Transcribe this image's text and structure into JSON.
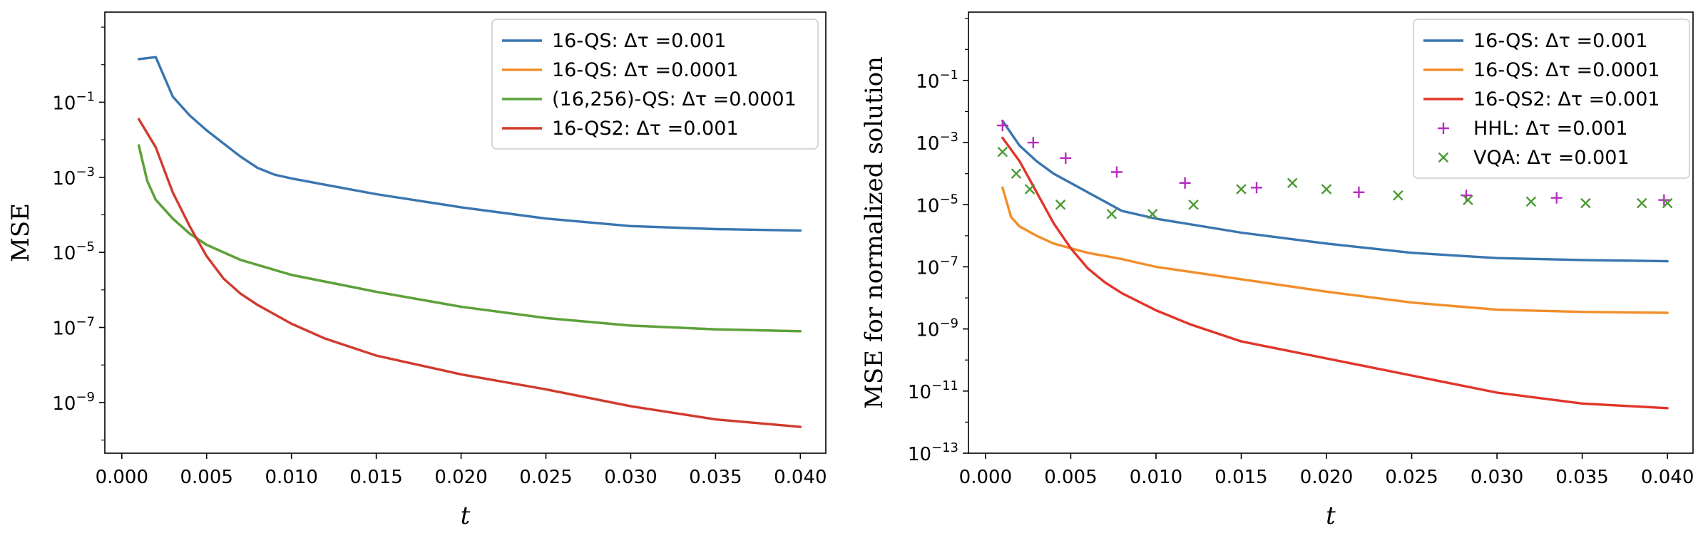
{
  "chart_data": [
    {
      "type": "line",
      "title": "",
      "xlabel": "t",
      "ylabel": "MSE",
      "yscale": "log",
      "xlim": [
        -0.001,
        0.0415
      ],
      "ylim_exp": [
        -10.35,
        1.4
      ],
      "x_ticks": [
        0.0,
        0.005,
        0.01,
        0.015,
        0.02,
        0.025,
        0.03,
        0.035,
        0.04
      ],
      "x_tick_labels": [
        "0.000",
        "0.005",
        "0.010",
        "0.015",
        "0.020",
        "0.025",
        "0.030",
        "0.035",
        "0.040"
      ],
      "y_tick_exps": [
        -1,
        -3,
        -5,
        -7,
        -9
      ],
      "y_tick_bases": [
        "10",
        "10",
        "10",
        "10",
        "10"
      ],
      "y_tick_sups": [
        "−1",
        "−3",
        "−5",
        "−7",
        "−9"
      ],
      "legend": {
        "loc": "upper right"
      },
      "series": [
        {
          "name": "16-QS:  Δτ =0.001",
          "color": "#3a75b0",
          "style": "line",
          "points": [
            [
              0.001,
              0.15
            ],
            [
              0.002,
              0.2
            ],
            [
              0.003,
              -0.85
            ],
            [
              0.004,
              -1.35
            ],
            [
              0.005,
              -1.75
            ],
            [
              0.006,
              -2.1
            ],
            [
              0.007,
              -2.45
            ],
            [
              0.008,
              -2.75
            ],
            [
              0.009,
              -2.93
            ],
            [
              0.01,
              -3.03
            ],
            [
              0.012,
              -3.2
            ],
            [
              0.015,
              -3.45
            ],
            [
              0.02,
              -3.8
            ],
            [
              0.025,
              -4.1
            ],
            [
              0.03,
              -4.3
            ],
            [
              0.035,
              -4.38
            ],
            [
              0.04,
              -4.42
            ]
          ]
        },
        {
          "name": "16-QS:  Δτ =0.0001",
          "color": "#f28e2b",
          "style": "line",
          "points": [
            [
              0.001,
              -2.15
            ],
            [
              0.0015,
              -3.1
            ],
            [
              0.002,
              -3.6
            ],
            [
              0.003,
              -4.1
            ],
            [
              0.004,
              -4.5
            ],
            [
              0.005,
              -4.8
            ],
            [
              0.007,
              -5.2
            ],
            [
              0.01,
              -5.6
            ],
            [
              0.015,
              -6.05
            ],
            [
              0.02,
              -6.45
            ],
            [
              0.025,
              -6.75
            ],
            [
              0.03,
              -6.95
            ],
            [
              0.035,
              -7.05
            ],
            [
              0.04,
              -7.1
            ]
          ]
        },
        {
          "name": "(16,256)-QS:  Δτ =0.0001",
          "color": "#59a23d",
          "style": "line",
          "points": [
            [
              0.001,
              -2.15
            ],
            [
              0.0015,
              -3.1
            ],
            [
              0.002,
              -3.6
            ],
            [
              0.003,
              -4.1
            ],
            [
              0.004,
              -4.5
            ],
            [
              0.005,
              -4.8
            ],
            [
              0.007,
              -5.2
            ],
            [
              0.01,
              -5.6
            ],
            [
              0.015,
              -6.05
            ],
            [
              0.02,
              -6.45
            ],
            [
              0.025,
              -6.75
            ],
            [
              0.03,
              -6.95
            ],
            [
              0.035,
              -7.05
            ],
            [
              0.04,
              -7.1
            ]
          ]
        },
        {
          "name": "16-QS2:  Δτ =0.001",
          "color": "#d03a2d",
          "style": "line",
          "points": [
            [
              0.001,
              -1.45
            ],
            [
              0.002,
              -2.2
            ],
            [
              0.003,
              -3.4
            ],
            [
              0.004,
              -4.3
            ],
            [
              0.005,
              -5.1
            ],
            [
              0.006,
              -5.7
            ],
            [
              0.007,
              -6.1
            ],
            [
              0.008,
              -6.4
            ],
            [
              0.01,
              -6.9
            ],
            [
              0.012,
              -7.3
            ],
            [
              0.015,
              -7.75
            ],
            [
              0.02,
              -8.25
            ],
            [
              0.025,
              -8.65
            ],
            [
              0.03,
              -9.1
            ],
            [
              0.035,
              -9.45
            ],
            [
              0.04,
              -9.65
            ]
          ]
        }
      ]
    },
    {
      "type": "line",
      "title": "",
      "xlabel": "t",
      "ylabel": "MSE for normalized solution",
      "yscale": "log",
      "xlim": [
        -0.001,
        0.0415
      ],
      "ylim_exp": [
        -13.0,
        1.2
      ],
      "x_ticks": [
        0.0,
        0.005,
        0.01,
        0.015,
        0.02,
        0.025,
        0.03,
        0.035,
        0.04
      ],
      "x_tick_labels": [
        "0.000",
        "0.005",
        "0.010",
        "0.015",
        "0.020",
        "0.025",
        "0.030",
        "0.035",
        "0.040"
      ],
      "y_tick_exps": [
        -1,
        -3,
        -5,
        -7,
        -9,
        -11,
        -13
      ],
      "y_tick_bases": [
        "10",
        "10",
        "10",
        "10",
        "10",
        "10",
        "10"
      ],
      "y_tick_sups": [
        "−1",
        "−3",
        "−5",
        "−7",
        "−9",
        "−11",
        "−13"
      ],
      "legend": {
        "loc": "upper right"
      },
      "series": [
        {
          "name": "16-QS:  Δτ =0.001",
          "color": "#3a75b0",
          "style": "line",
          "points": [
            [
              0.001,
              -2.3
            ],
            [
              0.002,
              -3.1
            ],
            [
              0.003,
              -3.6
            ],
            [
              0.004,
              -4.0
            ],
            [
              0.005,
              -4.3
            ],
            [
              0.007,
              -4.9
            ],
            [
              0.008,
              -5.2
            ],
            [
              0.01,
              -5.45
            ],
            [
              0.015,
              -5.9
            ],
            [
              0.02,
              -6.25
            ],
            [
              0.025,
              -6.55
            ],
            [
              0.03,
              -6.72
            ],
            [
              0.035,
              -6.78
            ],
            [
              0.04,
              -6.82
            ]
          ]
        },
        {
          "name": "16-QS:  Δτ =0.0001",
          "color": "#f28e2b",
          "style": "line",
          "points": [
            [
              0.001,
              -4.45
            ],
            [
              0.0015,
              -5.4
            ],
            [
              0.002,
              -5.7
            ],
            [
              0.003,
              -6.0
            ],
            [
              0.004,
              -6.25
            ],
            [
              0.006,
              -6.55
            ],
            [
              0.008,
              -6.75
            ],
            [
              0.01,
              -7.0
            ],
            [
              0.015,
              -7.4
            ],
            [
              0.02,
              -7.8
            ],
            [
              0.025,
              -8.15
            ],
            [
              0.03,
              -8.38
            ],
            [
              0.035,
              -8.45
            ],
            [
              0.04,
              -8.48
            ]
          ]
        },
        {
          "name": "16-QS2:  Δτ =0.001",
          "color": "#e2352a",
          "style": "line",
          "points": [
            [
              0.001,
              -2.85
            ],
            [
              0.002,
              -3.6
            ],
            [
              0.003,
              -4.6
            ],
            [
              0.004,
              -5.6
            ],
            [
              0.005,
              -6.4
            ],
            [
              0.006,
              -7.05
            ],
            [
              0.007,
              -7.5
            ],
            [
              0.008,
              -7.85
            ],
            [
              0.01,
              -8.4
            ],
            [
              0.012,
              -8.85
            ],
            [
              0.015,
              -9.4
            ],
            [
              0.02,
              -9.95
            ],
            [
              0.025,
              -10.5
            ],
            [
              0.03,
              -11.05
            ],
            [
              0.035,
              -11.4
            ],
            [
              0.04,
              -11.55
            ]
          ]
        },
        {
          "name": "HHL:  Δτ =0.001",
          "color": "#b62cc2",
          "style": "plus",
          "points": [
            [
              0.001,
              -2.45
            ],
            [
              0.0028,
              -3.0
            ],
            [
              0.0047,
              -3.5
            ],
            [
              0.0077,
              -3.95
            ],
            [
              0.0117,
              -4.3
            ],
            [
              0.0159,
              -4.45
            ],
            [
              0.0219,
              -4.6
            ],
            [
              0.0282,
              -4.7
            ],
            [
              0.0335,
              -4.78
            ],
            [
              0.0398,
              -4.85
            ]
          ]
        },
        {
          "name": "VQA:  Δτ =0.001",
          "color": "#4b9a33",
          "style": "x",
          "points": [
            [
              0.001,
              -3.3
            ],
            [
              0.0018,
              -4.0
            ],
            [
              0.0026,
              -4.5
            ],
            [
              0.0044,
              -5.0
            ],
            [
              0.0074,
              -5.3
            ],
            [
              0.0098,
              -5.3
            ],
            [
              0.0122,
              -5.0
            ],
            [
              0.015,
              -4.5
            ],
            [
              0.018,
              -4.3
            ],
            [
              0.02,
              -4.5
            ],
            [
              0.0242,
              -4.7
            ],
            [
              0.0283,
              -4.85
            ],
            [
              0.032,
              -4.9
            ],
            [
              0.0352,
              -4.95
            ],
            [
              0.0385,
              -4.95
            ],
            [
              0.04,
              -4.95
            ]
          ]
        }
      ]
    }
  ]
}
